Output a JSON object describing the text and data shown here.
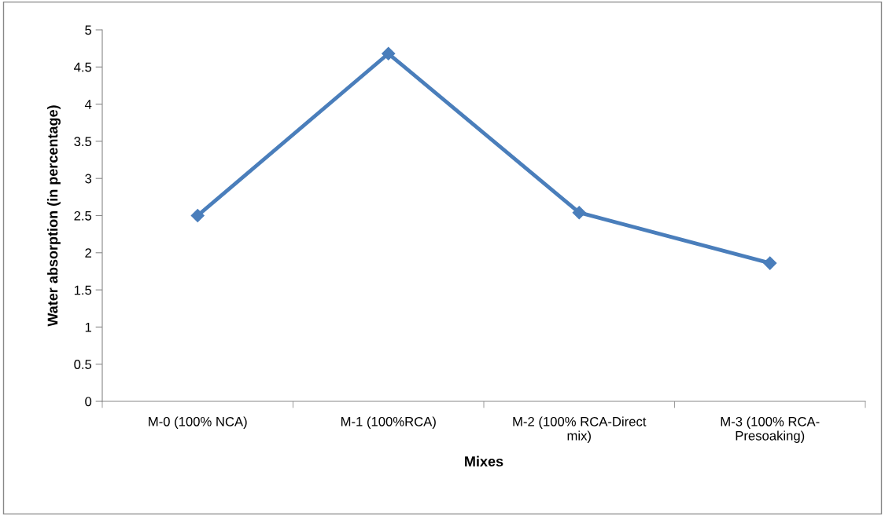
{
  "chart_data": {
    "type": "line",
    "xlabel": "Mixes",
    "ylabel": "Water absorption (in percentage)",
    "categories": [
      "M-0 (100% NCA)",
      "M-1 (100%RCA)",
      "M-2 (100% RCA-Direct\nmix)",
      "M-3 (100% RCA-\nPresoaking)"
    ],
    "series": [
      {
        "color": "#4a7ebb",
        "values": [
          2.5,
          4.68,
          2.54,
          1.86
        ]
      }
    ],
    "ylim": [
      0,
      5
    ],
    "yticks": [
      0,
      0.5,
      1,
      1.5,
      2,
      2.5,
      3,
      3.5,
      4,
      4.5,
      5
    ],
    "grid": false,
    "legend": false,
    "marker": "diamond",
    "line_style": "solid"
  }
}
